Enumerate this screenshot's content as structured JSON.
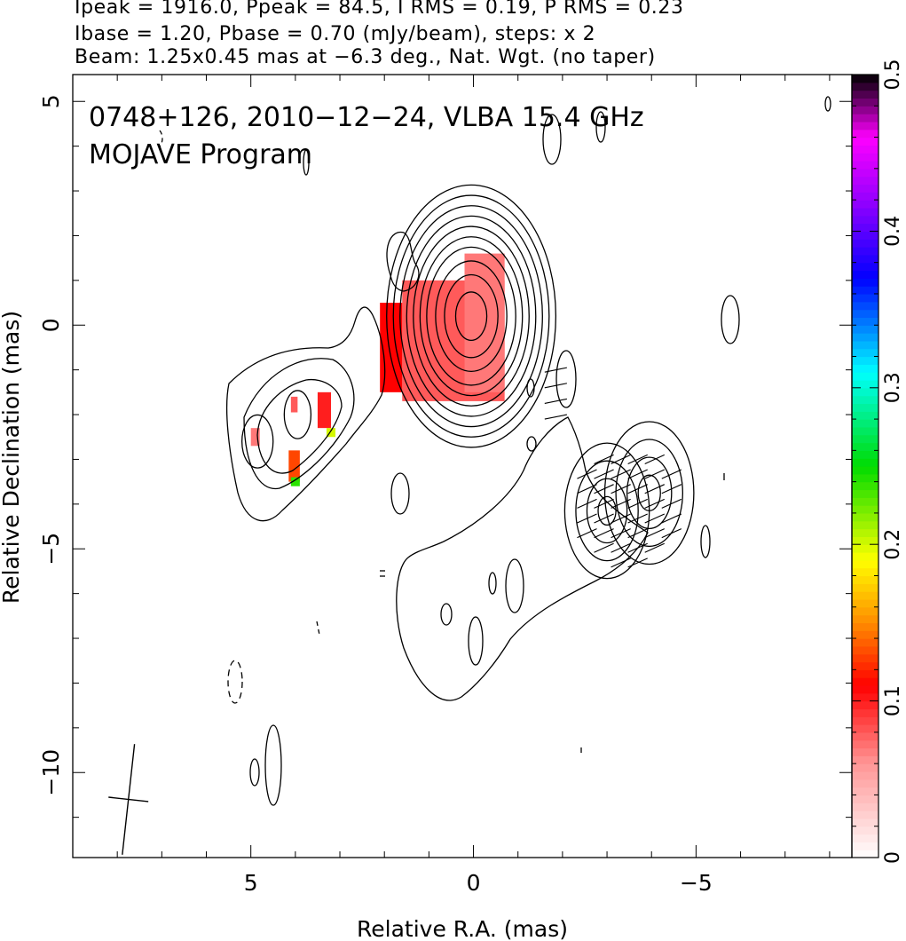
{
  "header": {
    "line1": "Ipeak = 1916.0, Ppeak = 84.5, I RMS = 0.19, P RMS = 0.23",
    "line2": "Ibase = 1.20, Pbase = 0.70 (mJy/beam), steps: x 2",
    "line3": "Beam: 1.25x0.45 mas at −6.3 deg., Nat. Wgt. (no taper)"
  },
  "chart_data": {
    "type": "heatmap",
    "annotation_line1": "0748+126, 2010−12−24, VLBA 15.4 GHz",
    "annotation_line2": "MOJAVE Program",
    "xlabel": "Relative R.A. (mas)",
    "ylabel": "Relative Declination (mas)",
    "xlim": [
      9,
      -8.5
    ],
    "ylim": [
      -11.9,
      5.6
    ],
    "x_ticks": [
      5,
      0,
      -5
    ],
    "x_tick_labels": [
      "5",
      "0",
      "−5"
    ],
    "y_ticks": [
      5,
      0,
      -5,
      -10
    ],
    "y_tick_labels": [
      "5",
      "0",
      "−5",
      "−10"
    ],
    "colorbar": {
      "range": [
        0,
        0.5
      ],
      "ticks": [
        0,
        0.1,
        0.2,
        0.3,
        0.4,
        0.5
      ],
      "tick_labels": [
        "0",
        "0.1",
        "0.2",
        "0.3",
        "0.4",
        "0.5"
      ]
    },
    "intensity_contours": [
      {
        "component": "core",
        "center": [
          0.05,
          0.2
        ],
        "rx_mas": [
          0.35,
          0.6,
          0.8,
          1.0,
          1.15,
          1.3,
          1.45,
          1.6,
          1.75,
          1.9
        ],
        "aspect": 1.55
      },
      {
        "component": "inner-jet",
        "center": [
          -3.0,
          -4.15
        ],
        "rx_mas": [
          0.2,
          0.45,
          0.7,
          0.95
        ],
        "aspect": 1.6
      },
      {
        "component": "outer-jet",
        "center": [
          -3.95,
          -3.75
        ],
        "rx_mas": [
          0.25,
          0.5,
          0.75,
          1.0
        ],
        "aspect": 1.6
      },
      {
        "component": "east-knot",
        "center": [
          4.85,
          -2.6
        ],
        "rx_mas": [
          0.35
        ],
        "aspect": 1.7
      },
      {
        "component": "east-knot-2",
        "center": [
          3.95,
          -2.0
        ],
        "rx_mas": [
          0.3
        ],
        "aspect": 1.8
      }
    ],
    "polarization_patches": [
      {
        "x_mas": [
          -0.7,
          1.6
        ],
        "y_mas": [
          -1.7,
          1.0
        ],
        "fraction": 0.08
      },
      {
        "x_mas": [
          -0.7,
          0.2
        ],
        "y_mas": [
          -1.5,
          1.6
        ],
        "fraction": 0.07
      },
      {
        "x_mas": [
          1.6,
          2.1
        ],
        "y_mas": [
          -1.5,
          0.5
        ],
        "fraction": 0.11
      },
      {
        "x_mas": [
          4.8,
          5.0
        ],
        "y_mas": [
          -2.7,
          -2.3
        ],
        "fraction": 0.07
      },
      {
        "x_mas": [
          3.95,
          4.1
        ],
        "y_mas": [
          -1.95,
          -1.6
        ],
        "fraction": 0.08
      },
      {
        "x_mas": [
          3.2,
          3.5
        ],
        "y_mas": [
          -2.3,
          -1.5
        ],
        "fraction": 0.1
      },
      {
        "x_mas": [
          3.9,
          4.15
        ],
        "y_mas": [
          -3.5,
          -2.8
        ],
        "fraction": 0.13
      },
      {
        "x_mas": [
          3.1,
          3.3
        ],
        "y_mas": [
          -2.5,
          -2.3
        ],
        "fraction": 0.2
      },
      {
        "x_mas": [
          3.9,
          4.1
        ],
        "y_mas": [
          -3.6,
          -3.4
        ],
        "fraction": 0.24
      }
    ],
    "beam": {
      "major_mas": 1.25,
      "minor_mas": 0.45,
      "pa_deg": -6.3
    }
  }
}
